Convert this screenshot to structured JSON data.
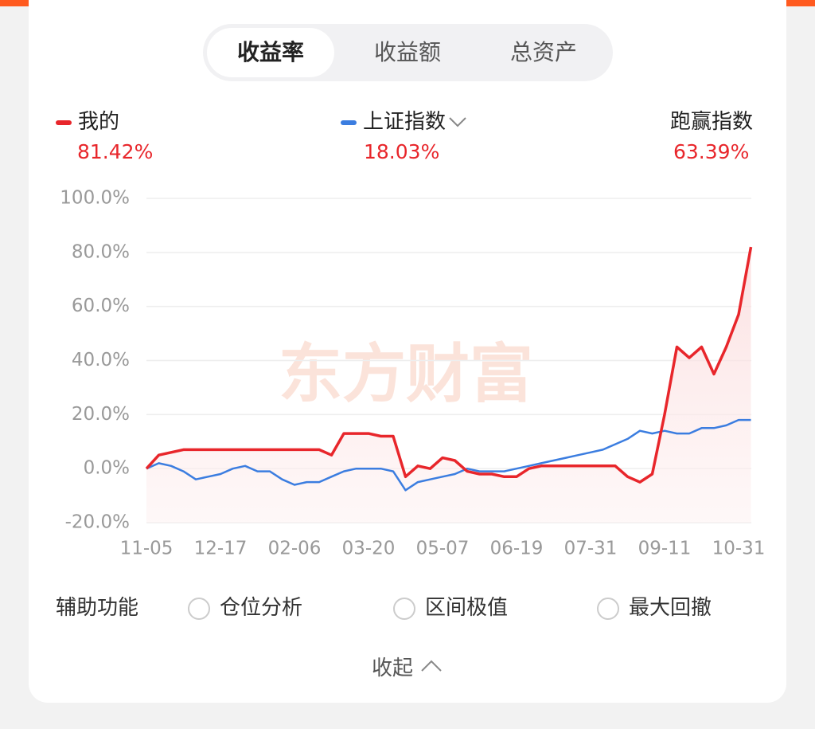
{
  "tabs": [
    "收益率",
    "收益额",
    "总资产"
  ],
  "summary": {
    "mine": "81.42%",
    "index": "18.03%",
    "excess_label": "跑赢指数",
    "excess": "63.39%"
  },
  "watermark": "东方财富",
  "aux": {
    "title": "辅助功能",
    "options": [
      "仓位分析",
      "区间极值",
      "最大回撤"
    ]
  },
  "collapse": "收起",
  "chart_data": {
    "type": "line",
    "categories": [
      "11-05",
      null,
      null,
      null,
      null,
      null,
      "12-17",
      null,
      null,
      null,
      null,
      null,
      "02-06",
      null,
      null,
      null,
      null,
      null,
      "03-20",
      null,
      null,
      null,
      null,
      null,
      "05-07",
      null,
      null,
      null,
      null,
      null,
      "06-19",
      null,
      null,
      null,
      null,
      null,
      "07-31",
      null,
      null,
      null,
      null,
      null,
      "09-11",
      null,
      null,
      null,
      null,
      null,
      "10-31",
      null
    ],
    "series": [
      {
        "name": "我的",
        "color": "#e8262b",
        "values": [
          0,
          5,
          6,
          7,
          7,
          7,
          7,
          7,
          7,
          7,
          7,
          7,
          7,
          7,
          7,
          5,
          13,
          13,
          13,
          12,
          12,
          -3,
          1,
          0,
          4,
          3,
          -1,
          -2,
          -2,
          -3,
          -3,
          0,
          1,
          1,
          1,
          1,
          1,
          1,
          1,
          -3,
          -5,
          -2,
          20,
          45,
          41,
          45,
          35,
          45,
          57,
          82
        ]
      },
      {
        "name": "上证指数",
        "color": "#3b7de0",
        "values": [
          0,
          2,
          1,
          -1,
          -4,
          -3,
          -2,
          0,
          1,
          -1,
          -1,
          -4,
          -6,
          -5,
          -5,
          -3,
          -1,
          0,
          0,
          0,
          -1,
          -8,
          -5,
          -4,
          -3,
          -2,
          0,
          -1,
          -1,
          -1,
          0,
          1,
          2,
          3,
          4,
          5,
          6,
          7,
          9,
          11,
          14,
          13,
          14,
          13,
          13,
          15,
          15,
          16,
          18,
          18
        ]
      }
    ],
    "ylim": [
      -20,
      100
    ],
    "yticks": [
      {
        "value": -20,
        "label": "-20.0%"
      },
      {
        "value": 0,
        "label": "0.0%"
      },
      {
        "value": 20,
        "label": "20.0%"
      },
      {
        "value": 40,
        "label": "40.0%"
      },
      {
        "value": 60,
        "label": "60.0%"
      },
      {
        "value": 80,
        "label": "80.0%"
      },
      {
        "value": 100,
        "label": "100.0%"
      }
    ],
    "grid": true
  }
}
